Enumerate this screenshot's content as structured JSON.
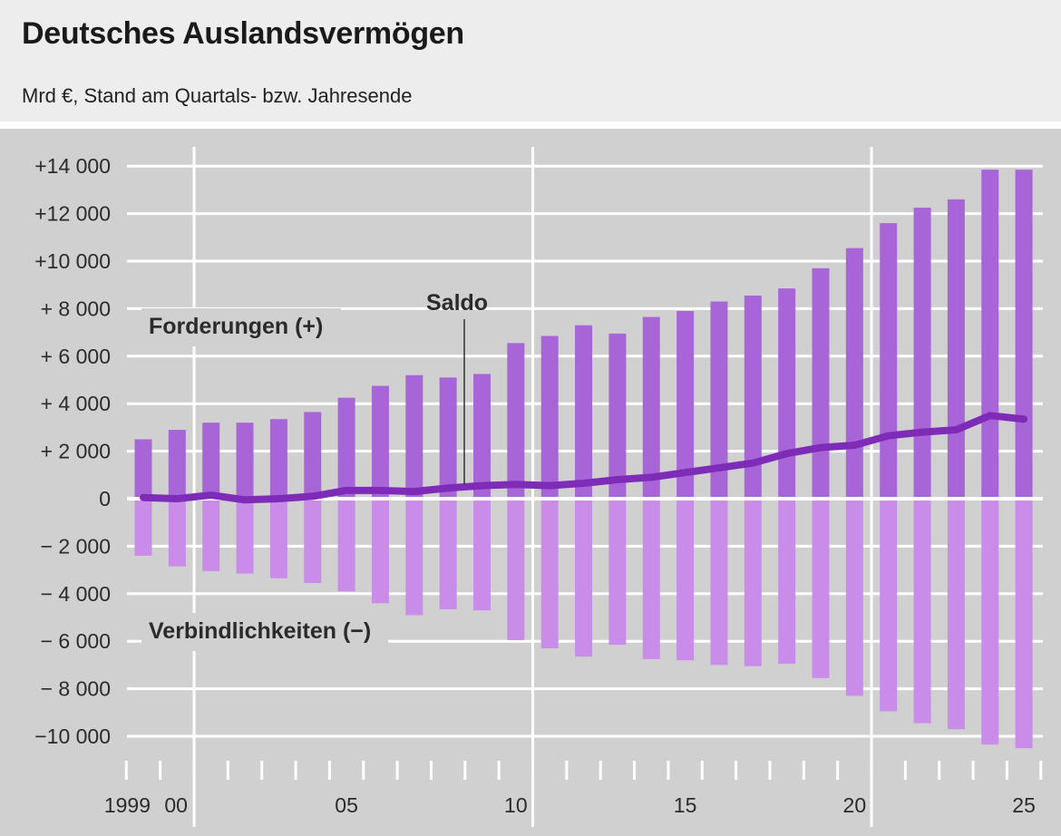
{
  "header": {
    "title": "Deutsches Auslandsvermögen",
    "subtitle": "Mrd €, Stand am Quartals- bzw. Jahresende"
  },
  "colors": {
    "background": "#d0d0d0",
    "assets": "#a865d8",
    "liabilities": "#c98ce9",
    "saldo": "#7e2cb8",
    "grid": "#ffffff"
  },
  "chart_data": {
    "type": "bar",
    "title": "Deutsches Auslandsvermögen",
    "subtitle": "Mrd €, Stand am Quartals- bzw. Jahresende",
    "x": [
      "1999",
      "2000",
      "2001",
      "2002",
      "2003",
      "2004",
      "2005",
      "2006",
      "2007",
      "2008",
      "2009",
      "2010",
      "2011",
      "2012",
      "2013",
      "2014",
      "2015",
      "2016",
      "2017",
      "2018",
      "2019",
      "2020",
      "2021",
      "2022",
      "2023",
      "2024",
      "2025"
    ],
    "x_tick_labels": [
      {
        "x": "1999",
        "label": "1999"
      },
      {
        "x": "2000",
        "label": "00"
      },
      {
        "x": "2005",
        "label": "05"
      },
      {
        "x": "2010",
        "label": "10"
      },
      {
        "x": "2015",
        "label": "15"
      },
      {
        "x": "2020",
        "label": "20"
      },
      {
        "x": "2025",
        "label": "25"
      }
    ],
    "y_ticks": [
      {
        "value": 14000,
        "label": "+14 000"
      },
      {
        "value": 12000,
        "label": "+12 000"
      },
      {
        "value": 10000,
        "label": "+10 000"
      },
      {
        "value": 8000,
        "label": "+  8 000"
      },
      {
        "value": 6000,
        "label": "+  6 000"
      },
      {
        "value": 4000,
        "label": "+  4 000"
      },
      {
        "value": 2000,
        "label": "+  2 000"
      },
      {
        "value": 0,
        "label": "0"
      },
      {
        "value": -2000,
        "label": "−  2 000"
      },
      {
        "value": -4000,
        "label": "−  4 000"
      },
      {
        "value": -6000,
        "label": "−  6 000"
      },
      {
        "value": -8000,
        "label": "−  8 000"
      },
      {
        "value": -10000,
        "label": "−10 000"
      }
    ],
    "ylim": [
      -10800,
      14800
    ],
    "grid": true,
    "series": [
      {
        "name": "Forderungen (+)",
        "values": [
          2500,
          2900,
          3200,
          3200,
          3350,
          3650,
          4250,
          4750,
          5200,
          5100,
          5250,
          6550,
          6850,
          7300,
          6950,
          7650,
          7900,
          8300,
          8550,
          8850,
          9700,
          10550,
          11600,
          12250,
          12600,
          13850,
          13850
        ]
      },
      {
        "name": "Verbindlichkeiten (−)",
        "values": [
          -2400,
          -2850,
          -3050,
          -3150,
          -3350,
          -3550,
          -3900,
          -4400,
          -4900,
          -4650,
          -4700,
          -5950,
          -6300,
          -6650,
          -6150,
          -6750,
          -6800,
          -7000,
          -7050,
          -6950,
          -7550,
          -8300,
          -8950,
          -9450,
          -9700,
          -10350,
          -10500
        ]
      },
      {
        "name": "Saldo",
        "values": [
          50,
          0,
          150,
          -50,
          0,
          100,
          350,
          350,
          300,
          450,
          550,
          600,
          550,
          650,
          800,
          900,
          1100,
          1300,
          1500,
          1900,
          2150,
          2250,
          2650,
          2800,
          2900,
          3500,
          3350
        ]
      }
    ],
    "annotations": {
      "assets_label": "Forderungen (+)",
      "liabilities_label": "Verbindlichkeiten (−)",
      "saldo_label": "Saldo"
    }
  }
}
